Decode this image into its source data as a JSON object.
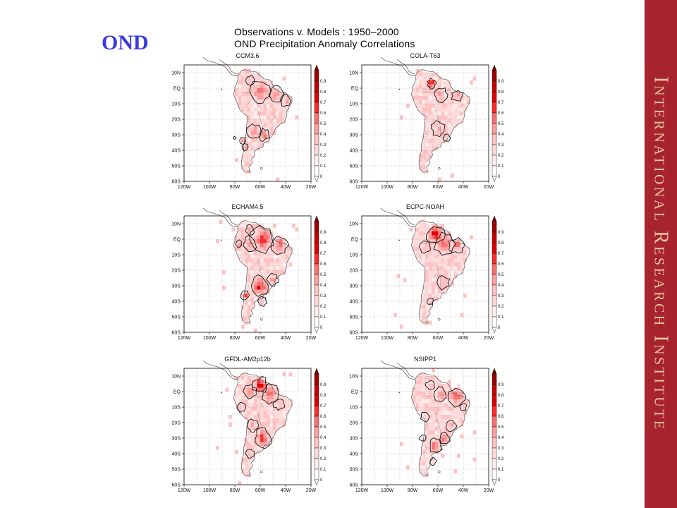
{
  "slide": {
    "season_label": "OND",
    "title_line1": "Observations v. Models : 1950–2000",
    "title_line2": "OND Precipitation Anomaly Correlations",
    "banner_text": "International Research Institute"
  },
  "map": {
    "lat_labels": [
      "10N",
      "EQ",
      "10S",
      "20S",
      "30S",
      "40S",
      "50S",
      "60S"
    ],
    "lon_labels": [
      "120W",
      "100W",
      "80W",
      "60W",
      "40W",
      "20W"
    ],
    "colorbar_labels": [
      "0.9",
      "0.8",
      "0.7",
      "0.6",
      "0.5",
      "0.4",
      "0.3",
      "0.2",
      "0.1",
      "0"
    ],
    "colorbar_colors": [
      "#6e0000",
      "#9e0000",
      "#c80000",
      "#e00000",
      "#ff2a2a",
      "#ff6e6e",
      "#ff9e9e",
      "#ffc2c2",
      "#ffdada",
      "#ffeeee",
      "#ffffff"
    ]
  },
  "panels": [
    {
      "id": "ccm",
      "title": "CCM3.6"
    },
    {
      "id": "cola",
      "title": "COLA-T63"
    },
    {
      "id": "echam",
      "title": "ECHAM4.5"
    },
    {
      "id": "ecpc",
      "title": "ECPC-NOAH"
    },
    {
      "id": "gfdl",
      "title": "GFDL-AM2p12b"
    },
    {
      "id": "nsipp",
      "title": "NSIPP1"
    }
  ]
}
